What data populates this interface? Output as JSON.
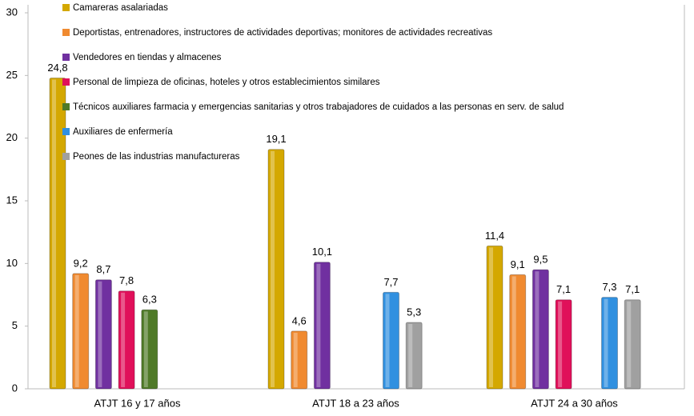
{
  "chart_data": {
    "type": "bar",
    "categories": [
      "ATJT  16 y 17 años",
      "ATJT  18 a 23 años",
      "ATJT  24 a 30 años"
    ],
    "series": [
      {
        "name": "Camareras asalariadas",
        "color": "#d4a800",
        "values": [
          24.8,
          19.1,
          11.4
        ],
        "value_labels": [
          "24,8",
          "19,1",
          "11,4"
        ]
      },
      {
        "name": "Deportistas, entrenadores, instructores de actividades deportivas; monitores de actividades recreativas",
        "color": "#f08a30",
        "values": [
          9.2,
          4.6,
          9.1
        ],
        "value_labels": [
          "9,2",
          "4,6",
          "9,1"
        ]
      },
      {
        "name": "Vendedores en tiendas y almacenes",
        "color": "#7030a0",
        "values": [
          8.7,
          10.1,
          9.5
        ],
        "value_labels": [
          "8,7",
          "10,1",
          "9,5"
        ]
      },
      {
        "name": "Personal de limpieza de oficinas, hoteles y otros establecimientos similares",
        "color": "#e0105a",
        "values": [
          7.8,
          null,
          7.1
        ],
        "value_labels": [
          "7,8",
          null,
          "7,1"
        ]
      },
      {
        "name": "Técnicos auxiliares farmacia y emergencias sanitarias y otros trabajadores de cuidados a las personas en serv. de salud",
        "color": "#4f7a28",
        "values": [
          6.3,
          null,
          null
        ],
        "value_labels": [
          "6,3",
          null,
          null
        ]
      },
      {
        "name": "Auxiliares de enfermería",
        "color": "#3090e0",
        "values": [
          null,
          7.7,
          7.3
        ],
        "value_labels": [
          null,
          "7,7",
          "7,3"
        ]
      },
      {
        "name": "Peones de las industrias manufactureras",
        "color": "#a0a0a0",
        "values": [
          null,
          5.3,
          7.1
        ],
        "value_labels": [
          null,
          "5,3",
          "7,1"
        ]
      }
    ],
    "ylim": [
      0,
      30
    ],
    "yticks": [
      0,
      5,
      10,
      15,
      20,
      25,
      30
    ]
  }
}
